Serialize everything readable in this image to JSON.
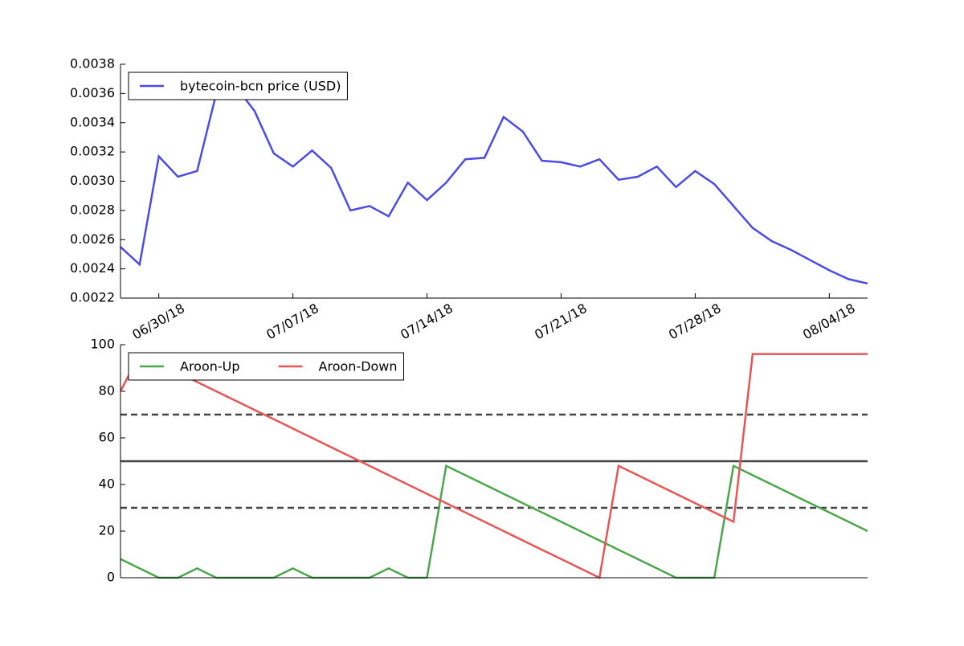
{
  "chart_data": [
    {
      "type": "line",
      "x": [
        "06/28/18",
        "06/29/18",
        "06/30/18",
        "07/01/18",
        "07/02/18",
        "07/03/18",
        "07/04/18",
        "07/05/18",
        "07/06/18",
        "07/07/18",
        "07/08/18",
        "07/09/18",
        "07/10/18",
        "07/11/18",
        "07/12/18",
        "07/13/18",
        "07/14/18",
        "07/15/18",
        "07/16/18",
        "07/17/18",
        "07/18/18",
        "07/19/18",
        "07/20/18",
        "07/21/18",
        "07/22/18",
        "07/23/18",
        "07/24/18",
        "07/25/18",
        "07/26/18",
        "07/27/18",
        "07/28/18",
        "07/29/18",
        "07/30/18",
        "07/31/18",
        "08/01/18",
        "08/02/18",
        "08/03/18",
        "08/04/18",
        "08/05/18",
        "08/06/18"
      ],
      "xlim": [
        "06/28/18",
        "08/06/18"
      ],
      "xticks": [
        "06/30/18",
        "07/07/18",
        "07/14/18",
        "07/21/18",
        "07/28/18",
        "08/04/18"
      ],
      "ylim": [
        0.0022,
        0.0038
      ],
      "yticks": [
        0.0022,
        0.0024,
        0.0026,
        0.0028,
        {
          "value": 0.003,
          "label": "0.0030"
        },
        0.0032,
        0.0034,
        0.0036,
        0.0038
      ],
      "legend": "upper left",
      "series": [
        {
          "name": "bytecoin-bcn price (USD)",
          "color": "#4b4be6",
          "values": [
            0.00255,
            0.00243,
            0.00317,
            0.00303,
            0.00307,
            0.0036,
            0.00365,
            0.00348,
            0.00319,
            0.0031,
            0.00321,
            0.00309,
            0.0028,
            0.00283,
            0.00276,
            0.00299,
            0.00287,
            0.00299,
            0.00315,
            0.00316,
            0.00344,
            0.00334,
            0.00314,
            0.00313,
            0.0031,
            0.00315,
            0.00301,
            0.00303,
            0.0031,
            0.00296,
            0.00307,
            0.00298,
            0.00283,
            0.00268,
            0.00259,
            0.00253,
            0.00246,
            0.00239,
            0.00233,
            0.0023
          ]
        }
      ]
    },
    {
      "type": "line",
      "x": [
        "06/28/18",
        "06/29/18",
        "06/30/18",
        "07/01/18",
        "07/02/18",
        "07/03/18",
        "07/04/18",
        "07/05/18",
        "07/06/18",
        "07/07/18",
        "07/08/18",
        "07/09/18",
        "07/10/18",
        "07/11/18",
        "07/12/18",
        "07/13/18",
        "07/14/18",
        "07/15/18",
        "07/16/18",
        "07/17/18",
        "07/18/18",
        "07/19/18",
        "07/20/18",
        "07/21/18",
        "07/22/18",
        "07/23/18",
        "07/24/18",
        "07/25/18",
        "07/26/18",
        "07/27/18",
        "07/28/18",
        "07/29/18",
        "07/30/18",
        "07/31/18",
        "08/01/18",
        "08/02/18",
        "08/03/18",
        "08/04/18",
        "08/05/18",
        "08/06/18"
      ],
      "xlim": [
        "06/28/18",
        "08/06/18"
      ],
      "ylim": [
        0,
        100
      ],
      "yticks": [
        0,
        20,
        40,
        60,
        80,
        100
      ],
      "legend": "upper left",
      "hlines": [
        {
          "value": 70,
          "style": "dashed",
          "color": "#444444"
        },
        {
          "value": 50,
          "style": "solid",
          "color": "#444444"
        },
        {
          "value": 30,
          "style": "dashed",
          "color": "#444444"
        }
      ],
      "series": [
        {
          "name": "Aroon-Up",
          "color": "#4ca64c",
          "values": [
            8,
            4,
            0,
            0,
            4,
            0,
            0,
            0,
            0,
            4,
            0,
            0,
            0,
            0,
            4,
            0,
            0,
            48,
            44,
            40,
            36,
            32,
            28,
            24,
            20,
            16,
            12,
            8,
            4,
            0,
            0,
            0,
            48,
            44,
            40,
            36,
            32,
            28,
            24,
            20
          ]
        },
        {
          "name": "Aroon-Down",
          "color": "#e85555",
          "values": [
            80,
            96,
            92,
            88,
            84,
            80,
            76,
            72,
            68,
            64,
            60,
            56,
            52,
            48,
            44,
            40,
            36,
            32,
            28,
            24,
            20,
            16,
            12,
            8,
            4,
            0,
            48,
            44,
            40,
            36,
            32,
            28,
            24,
            96,
            96,
            96,
            96,
            96,
            96,
            96
          ]
        }
      ]
    }
  ]
}
